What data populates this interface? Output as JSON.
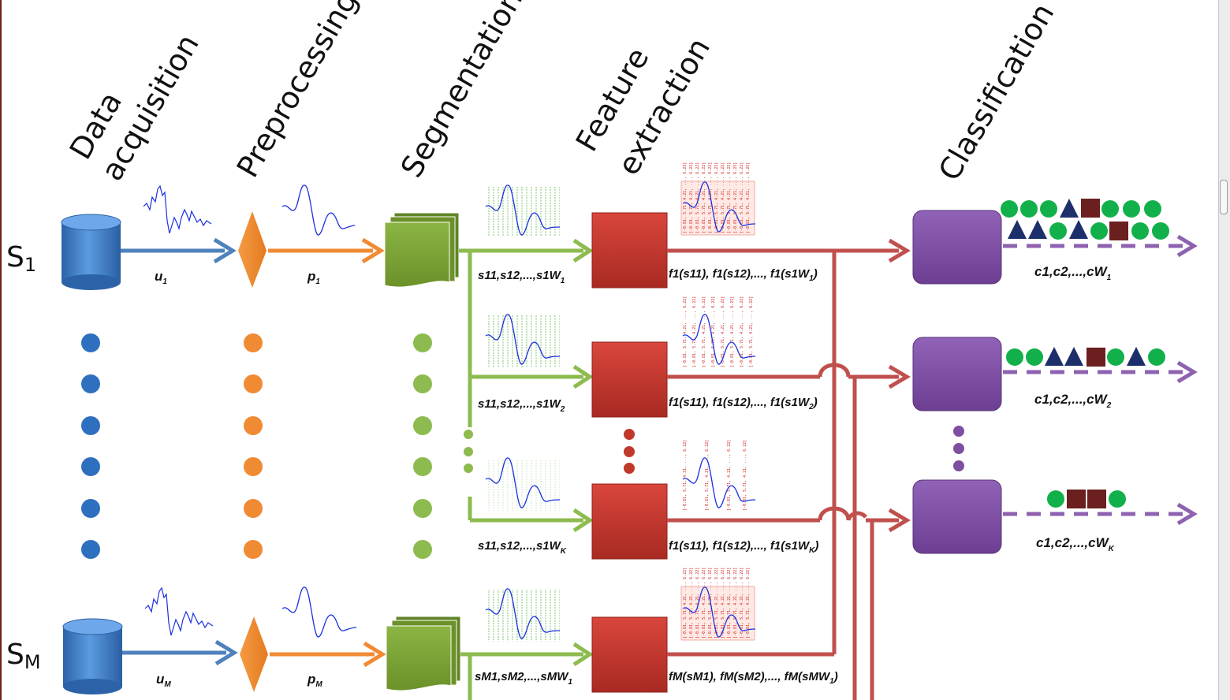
{
  "stages": [
    "Data acquisition",
    "Preprocessing",
    "Segmentation",
    "Feature extraction",
    "Classification"
  ],
  "stage_lines": {
    "data": [
      "Data",
      "acquisition"
    ],
    "pre": [
      "Preprocessing"
    ],
    "seg": [
      "Segmentation"
    ],
    "feat": [
      "Feature",
      "extraction"
    ],
    "cls": [
      "Classification"
    ]
  },
  "rows": {
    "first": {
      "label": "S",
      "sub": "1",
      "raw": "u",
      "raw_sub": "1",
      "pre": "p",
      "pre_sub": "1"
    },
    "last": {
      "label": "S",
      "sub": "M",
      "raw": "u",
      "raw_sub": "M",
      "pre": "p",
      "pre_sub": "M"
    }
  },
  "segments": {
    "w1": {
      "main": "s11,s12,...,s1W",
      "sub": "1"
    },
    "w2": {
      "main": "s11,s12,...,s1W",
      "sub": "2"
    },
    "wk": {
      "main": "s11,s12,...,s1W",
      "sub": "K"
    },
    "m1": {
      "main": "sM1,sM2,...,sMW",
      "sub": "1"
    }
  },
  "features": {
    "w1": {
      "main": "f1(s11), f1(s12),..., f1(s1W",
      "sub": "1",
      "close": ")"
    },
    "w2": {
      "main": "f1(s11), f1(s12),..., f1(s1W",
      "sub": "2",
      "close": ")"
    },
    "wk": {
      "main": "f1(s11), f1(s12),..., f1(s1W",
      "sub": "K",
      "close": ")"
    },
    "m1": {
      "main": "fM(sM1), fM(sM2),..., fM(sMW",
      "sub": "1",
      "close": ")"
    }
  },
  "classes": {
    "w1": {
      "main": "c1,c2,...,cW",
      "sub": "1"
    },
    "w2": {
      "main": "c1,c2,...,cW",
      "sub": "2"
    },
    "wk": {
      "main": "c1,c2,...,cW",
      "sub": "K"
    }
  },
  "feature_vector_text": "[-0.81, 5.71, 4.21, ..., 6.22]",
  "colors": {
    "acquisition": "#3d7cc9",
    "preprocessing": "#f08a33",
    "segmentation": "#79a136",
    "segmentation_arrow": "#8dbb4f",
    "feature": "#c0392b",
    "feature_line": "#c0504d",
    "classification": "#7e4fa0",
    "class_green": "#12b04a",
    "class_navy": "#1d2f6b",
    "class_maroon": "#6b1f1f",
    "signal": "#1a2fe0"
  }
}
